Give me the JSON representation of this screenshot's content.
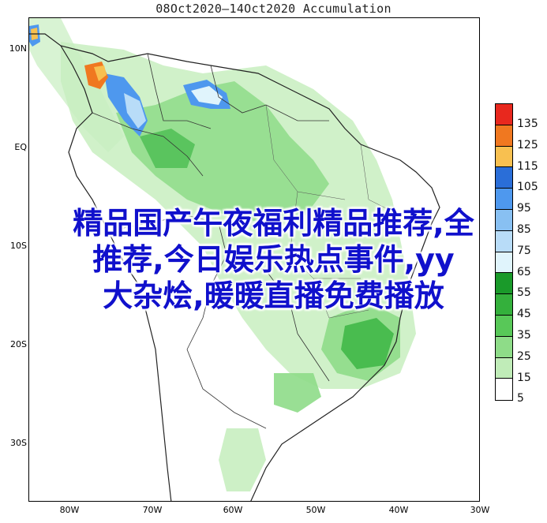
{
  "title": "08Oct2020—14Oct2020 Accumulation",
  "lat_labels": [
    "10N",
    "EQ",
    "10S",
    "20S",
    "30S"
  ],
  "lon_labels": [
    "80W",
    "70W",
    "60W",
    "50W",
    "40W",
    "30W"
  ],
  "legend": {
    "levels": [
      "135",
      "125",
      "115",
      "105",
      "95",
      "85",
      "75",
      "65",
      "55",
      "45",
      "35",
      "25",
      "15",
      "5"
    ],
    "colors": [
      "#e8281e",
      "#f07820",
      "#f8c050",
      "#2a6ed8",
      "#4e98ee",
      "#88c0f2",
      "#b8dcf8",
      "#e0f4fc",
      "#1a9a2a",
      "#34b03c",
      "#58c858",
      "#8edc88",
      "#c0ecb8",
      "#ffffff"
    ]
  },
  "overlay": {
    "line1": "精品国产午夜福利精品推荐,全",
    "line2": "推荐,今日娱乐热点事件,yy",
    "line3": "大杂烩,暖暖直播免费播放"
  },
  "colors": {
    "coast": "#222222",
    "lightgreen": "#c8eec0",
    "midgreen": "#8edc88",
    "darkgreen": "#40b848"
  }
}
